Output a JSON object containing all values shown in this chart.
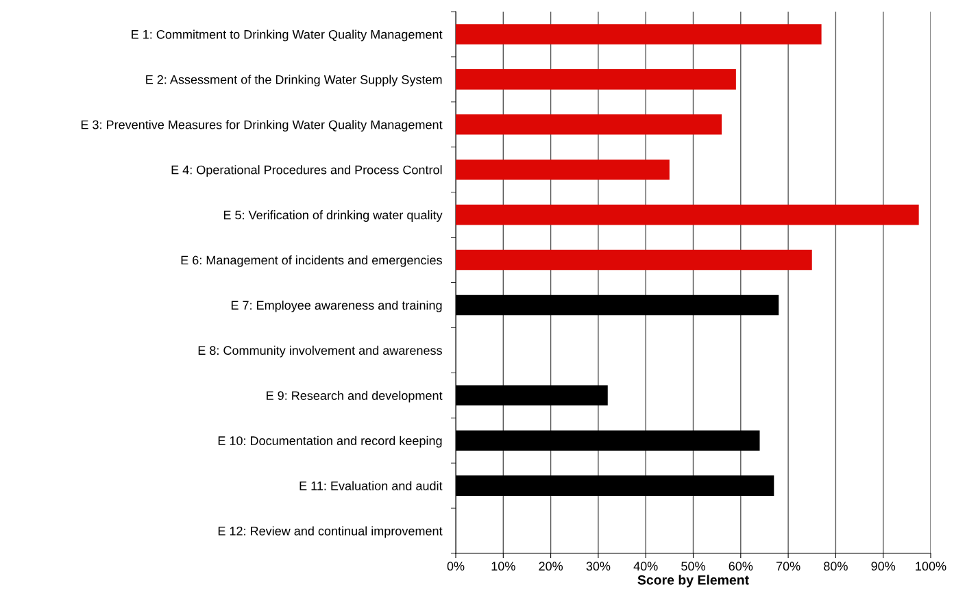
{
  "chart_data": {
    "type": "bar",
    "orientation": "horizontal",
    "xlabel": "Score by Element",
    "categories": [
      "E 1: Commitment to Drinking Water Quality Management",
      "E 2: Assessment of the Drinking Water Supply System",
      "E 3: Preventive Measures for Drinking Water Quality Management",
      "E 4: Operational Procedures and Process Control",
      "E 5: Verification of drinking water quality",
      "E 6: Management of incidents and emergencies",
      "E 7: Employee awareness and training",
      "E 8: Community involvement and awareness",
      "E 9: Research and development",
      "E 10: Documentation and record keeping",
      "E 11: Evaluation and audit",
      "E 12: Review and continual improvement"
    ],
    "values": [
      77,
      59,
      56,
      45,
      97.5,
      75,
      68,
      null,
      32,
      64,
      67,
      null
    ],
    "colors": [
      "#dd0805",
      "#dd0805",
      "#dd0805",
      "#dd0805",
      "#dd0805",
      "#dd0805",
      "#000000",
      "#000000",
      "#000000",
      "#000000",
      "#000000",
      "#000000"
    ],
    "xlim": [
      0,
      100
    ],
    "xticks": [
      {
        "value": 0,
        "label": "0%"
      },
      {
        "value": 10,
        "label": "10%"
      },
      {
        "value": 20,
        "label": "20%"
      },
      {
        "value": 30,
        "label": "30%"
      },
      {
        "value": 40,
        "label": "40%"
      },
      {
        "value": 50,
        "label": "50%"
      },
      {
        "value": 60,
        "label": "60%"
      },
      {
        "value": 70,
        "label": "70%"
      },
      {
        "value": 80,
        "label": "80%"
      },
      {
        "value": 90,
        "label": "90%"
      },
      {
        "value": 100,
        "label": "100%"
      }
    ],
    "grid": "x"
  }
}
